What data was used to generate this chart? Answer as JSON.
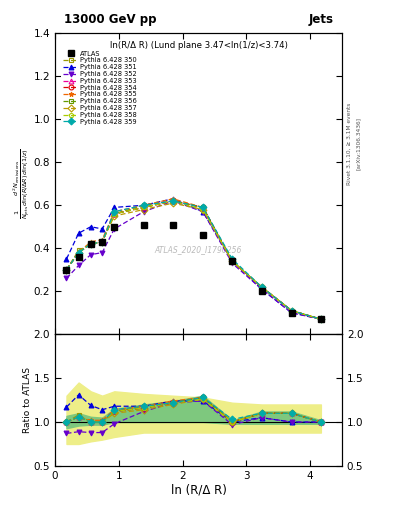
{
  "title": "13000 GeV pp",
  "title_right": "Jets",
  "annotation": "ln(R/Δ R) (Lund plane 3.47<ln(1/z)<3.74)",
  "watermark": "ATLAS_2020_I1790256",
  "rivet_text": "Rivet 3.1.10, ≥ 3.1M events",
  "arxiv_text": "[arXiv:1306.3436]",
  "ylabel_main": "$\\frac{1}{N_{\\mathrm{jets}}}\\frac{d^2 N_{\\mathrm{emissions}}}{d\\ln(R/\\Delta R)\\,d\\ln(1/z)}$",
  "ylabel_ratio": "Ratio to ATLAS",
  "xlabel": "ln (R/Δ R)",
  "xlim": [
    0,
    4.5
  ],
  "ylim_main": [
    0.0,
    1.4
  ],
  "ylim_ratio": [
    0.5,
    2.0
  ],
  "yticks_main": [
    0.2,
    0.4,
    0.6,
    0.8,
    1.0,
    1.2,
    1.4
  ],
  "yticks_ratio": [
    0.5,
    1.0,
    1.5,
    2.0
  ],
  "xticks": [
    0,
    1,
    2,
    3,
    4
  ],
  "atlas_x": [
    0.18,
    0.37,
    0.56,
    0.74,
    0.93,
    1.39,
    1.85,
    2.32,
    2.78,
    3.24,
    3.71,
    4.17
  ],
  "atlas_y": [
    0.3,
    0.36,
    0.42,
    0.43,
    0.5,
    0.51,
    0.51,
    0.46,
    0.34,
    0.2,
    0.1,
    0.07
  ],
  "py350_x": [
    0.18,
    0.37,
    0.56,
    0.74,
    0.93,
    1.39,
    1.85,
    2.32,
    2.78,
    3.24,
    3.71,
    4.17
  ],
  "py350_y": [
    0.3,
    0.39,
    0.42,
    0.43,
    0.56,
    0.6,
    0.62,
    0.59,
    0.34,
    0.22,
    0.11,
    0.07
  ],
  "py351_x": [
    0.18,
    0.37,
    0.56,
    0.74,
    0.93,
    1.39,
    1.85,
    2.32,
    2.78,
    3.24,
    3.71,
    4.17
  ],
  "py351_y": [
    0.35,
    0.47,
    0.5,
    0.49,
    0.59,
    0.6,
    0.63,
    0.57,
    0.34,
    0.21,
    0.1,
    0.07
  ],
  "py352_x": [
    0.18,
    0.37,
    0.56,
    0.74,
    0.93,
    1.39,
    1.85,
    2.32,
    2.78,
    3.24,
    3.71,
    4.17
  ],
  "py352_y": [
    0.26,
    0.32,
    0.37,
    0.38,
    0.49,
    0.57,
    0.62,
    0.57,
    0.33,
    0.21,
    0.1,
    0.07
  ],
  "py353_x": [
    0.18,
    0.37,
    0.56,
    0.74,
    0.93,
    1.39,
    1.85,
    2.32,
    2.78,
    3.24,
    3.71,
    4.17
  ],
  "py353_y": [
    0.3,
    0.38,
    0.42,
    0.43,
    0.56,
    0.59,
    0.62,
    0.59,
    0.34,
    0.22,
    0.11,
    0.07
  ],
  "py354_x": [
    0.18,
    0.37,
    0.56,
    0.74,
    0.93,
    1.39,
    1.85,
    2.32,
    2.78,
    3.24,
    3.71,
    4.17
  ],
  "py354_y": [
    0.3,
    0.38,
    0.42,
    0.43,
    0.56,
    0.59,
    0.62,
    0.59,
    0.34,
    0.22,
    0.11,
    0.07
  ],
  "py355_x": [
    0.18,
    0.37,
    0.56,
    0.74,
    0.93,
    1.39,
    1.85,
    2.32,
    2.78,
    3.24,
    3.71,
    4.17
  ],
  "py355_y": [
    0.3,
    0.38,
    0.43,
    0.44,
    0.57,
    0.6,
    0.63,
    0.59,
    0.34,
    0.22,
    0.11,
    0.07
  ],
  "py356_x": [
    0.18,
    0.37,
    0.56,
    0.74,
    0.93,
    1.39,
    1.85,
    2.32,
    2.78,
    3.24,
    3.71,
    4.17
  ],
  "py356_y": [
    0.3,
    0.38,
    0.42,
    0.43,
    0.56,
    0.59,
    0.62,
    0.59,
    0.34,
    0.22,
    0.11,
    0.07
  ],
  "py357_x": [
    0.18,
    0.37,
    0.56,
    0.74,
    0.93,
    1.39,
    1.85,
    2.32,
    2.78,
    3.24,
    3.71,
    4.17
  ],
  "py357_y": [
    0.3,
    0.38,
    0.42,
    0.43,
    0.55,
    0.58,
    0.61,
    0.58,
    0.34,
    0.22,
    0.11,
    0.07
  ],
  "py358_x": [
    0.18,
    0.37,
    0.56,
    0.74,
    0.93,
    1.39,
    1.85,
    2.32,
    2.78,
    3.24,
    3.71,
    4.17
  ],
  "py358_y": [
    0.3,
    0.38,
    0.42,
    0.43,
    0.56,
    0.59,
    0.62,
    0.58,
    0.34,
    0.22,
    0.11,
    0.07
  ],
  "py359_x": [
    0.18,
    0.37,
    0.56,
    0.74,
    0.93,
    1.39,
    1.85,
    2.32,
    2.78,
    3.24,
    3.71,
    4.17
  ],
  "py359_y": [
    0.3,
    0.38,
    0.42,
    0.43,
    0.57,
    0.6,
    0.62,
    0.59,
    0.35,
    0.22,
    0.11,
    0.07
  ],
  "ratio_x": [
    0.18,
    0.37,
    0.56,
    0.74,
    0.93,
    1.39,
    1.85,
    2.32,
    2.78,
    3.24,
    3.71,
    4.17
  ],
  "ratio_350": [
    1.0,
    1.08,
    1.0,
    1.0,
    1.12,
    1.18,
    1.22,
    1.28,
    1.0,
    1.1,
    1.1,
    1.0
  ],
  "ratio_351": [
    1.17,
    1.31,
    1.19,
    1.14,
    1.18,
    1.18,
    1.24,
    1.24,
    1.0,
    1.05,
    1.0,
    1.0
  ],
  "ratio_352": [
    0.87,
    0.89,
    0.88,
    0.88,
    0.98,
    1.12,
    1.22,
    1.24,
    0.97,
    1.05,
    1.0,
    1.0
  ],
  "ratio_353": [
    1.0,
    1.06,
    1.0,
    1.0,
    1.12,
    1.16,
    1.22,
    1.28,
    1.0,
    1.1,
    1.1,
    1.0
  ],
  "ratio_354": [
    1.0,
    1.06,
    1.0,
    1.0,
    1.12,
    1.16,
    1.22,
    1.28,
    1.0,
    1.1,
    1.1,
    1.0
  ],
  "ratio_355": [
    1.0,
    1.06,
    1.02,
    1.02,
    1.14,
    1.18,
    1.24,
    1.28,
    1.0,
    1.1,
    1.1,
    1.0
  ],
  "ratio_356": [
    1.0,
    1.06,
    1.0,
    1.0,
    1.12,
    1.16,
    1.22,
    1.28,
    1.0,
    1.1,
    1.1,
    1.0
  ],
  "ratio_357": [
    1.0,
    1.06,
    1.0,
    1.0,
    1.1,
    1.14,
    1.2,
    1.26,
    1.0,
    1.1,
    1.1,
    1.0
  ],
  "ratio_358": [
    1.0,
    1.06,
    1.0,
    1.0,
    1.12,
    1.16,
    1.22,
    1.26,
    1.0,
    1.1,
    1.1,
    1.0
  ],
  "ratio_359": [
    1.0,
    1.06,
    1.0,
    1.0,
    1.14,
    1.18,
    1.22,
    1.28,
    1.03,
    1.1,
    1.1,
    1.0
  ],
  "band_outer_lo": [
    0.75,
    0.75,
    0.78,
    0.8,
    0.83,
    0.88,
    0.88,
    0.88,
    0.88,
    0.88,
    0.88,
    0.88
  ],
  "band_outer_hi": [
    1.3,
    1.45,
    1.35,
    1.3,
    1.35,
    1.32,
    1.3,
    1.28,
    1.22,
    1.2,
    1.2,
    1.2
  ],
  "band_inner_lo": [
    0.93,
    0.96,
    0.97,
    0.97,
    1.0,
    1.0,
    1.0,
    1.0,
    0.98,
    0.98,
    0.98,
    0.98
  ],
  "band_inner_hi": [
    1.07,
    1.1,
    1.06,
    1.05,
    1.15,
    1.2,
    1.24,
    1.3,
    1.02,
    1.12,
    1.12,
    1.02
  ],
  "color_350": "#999900",
  "color_351": "#0000dd",
  "color_352": "#6600cc",
  "color_353": "#ee0099",
  "color_354": "#dd0000",
  "color_355": "#ee6600",
  "color_356": "#669900",
  "color_357": "#bb9900",
  "color_358": "#aacc00",
  "color_359": "#00aaaa",
  "atlas_color": "#000000",
  "band_inner_color": "#7ec87e",
  "band_outer_color": "#eeee88"
}
